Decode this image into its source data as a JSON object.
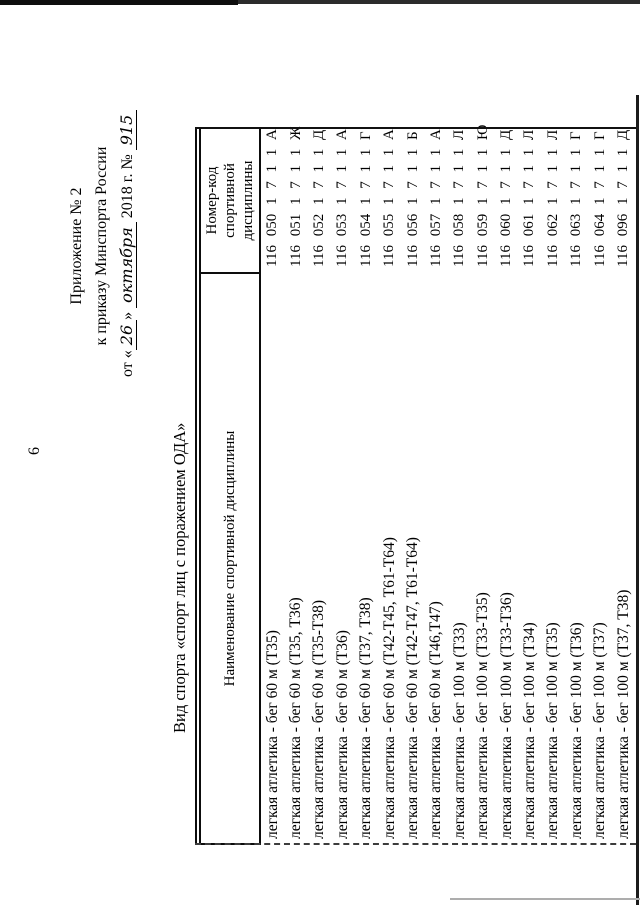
{
  "page": {
    "page_number": "6",
    "header": {
      "line1": "Приложение № 2",
      "line2": "к приказу Минспорта России",
      "date_prefix": "от «",
      "date_day": "26",
      "date_close_quote": "»",
      "date_month_handwritten": "октября",
      "date_year": "2018 г. №",
      "order_number_handwritten": "915"
    },
    "table": {
      "caption": "Вид спорта «спорт лиц с поражением ОДА»",
      "col1_header": "Наименование спортивной дисциплины",
      "col2_header": "Номер-код спортивной дисциплины",
      "rows": [
        {
          "name": "легкая атлетика - бег 60 м (Т35)",
          "code": "116 050 1 7 1 1 А"
        },
        {
          "name": "легкая атлетика - бег 60 м (Т35, Т36)",
          "code": "116 051 1 7 1 1 Ж"
        },
        {
          "name": "легкая атлетика - бег 60 м (Т35-Т38)",
          "code": "116 052 1 7 1 1 Д"
        },
        {
          "name": "легкая атлетика - бег 60 м (Т36)",
          "code": "116 053 1 7 1 1 А"
        },
        {
          "name": "легкая атлетика - бег 60 м (Т37, Т38)",
          "code": "116 054 1 7 1 1 Г"
        },
        {
          "name": "легкая атлетика - бег 60 м (Т42-Т45, Т61-Т64)",
          "code": "116 055 1 7 1 1 А"
        },
        {
          "name": "легкая атлетика - бег 60 м (Т42-Т47, Т61-Т64)",
          "code": "116 056 1 7 1 1 Б"
        },
        {
          "name": "легкая атлетика - бег 60 м (Т46,Т47)",
          "code": "116 057 1 7 1 1 А"
        },
        {
          "name": "легкая атлетика - бег 100 м (Т33)",
          "code": "116 058 1 7 1 1 Л"
        },
        {
          "name": "легкая атлетика - бег 100 м (Т33-Т35)",
          "code": "116 059 1 7 1 1 Ю"
        },
        {
          "name": "легкая атлетика - бег 100 м (Т33-Т36)",
          "code": "116 060 1 7 1 1 Д"
        },
        {
          "name": "легкая атлетика - бег 100 м (Т34)",
          "code": "116 061 1 7 1 1 Л"
        },
        {
          "name": "легкая атлетика - бег 100 м (Т35)",
          "code": "116 062 1 7 1 1 Л"
        },
        {
          "name": "легкая атлетика - бег 100 м (Т36)",
          "code": "116 063 1 7 1 1 Г"
        },
        {
          "name": "легкая атлетика - бег 100 м (Т37)",
          "code": "116 064 1 7 1 1 Г"
        },
        {
          "name": "легкая атлетика - бег 100 м (Т37, Т38)",
          "code": "116 096 1 7 1 1 Д"
        }
      ]
    }
  }
}
